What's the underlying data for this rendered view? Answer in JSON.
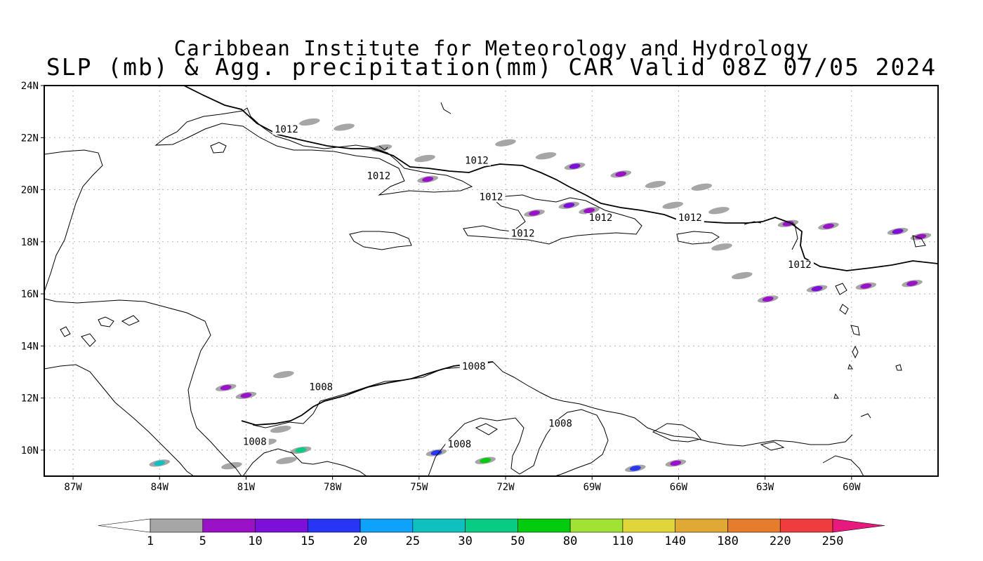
{
  "header": {
    "institute": "Caribbean Institute for Meteorology and Hydrology",
    "product": "SLP (mb) & Agg. precipitation(mm) CAR Valid 08Z 07/05 2024"
  },
  "map": {
    "lat_range": [
      9,
      24
    ],
    "lon_range": [
      -88,
      -57
    ],
    "lat_ticks": [
      {
        "label": "24N",
        "lat": 24
      },
      {
        "label": "22N",
        "lat": 22
      },
      {
        "label": "20N",
        "lat": 20
      },
      {
        "label": "18N",
        "lat": 18
      },
      {
        "label": "16N",
        "lat": 16
      },
      {
        "label": "14N",
        "lat": 14
      },
      {
        "label": "12N",
        "lat": 12
      },
      {
        "label": "10N",
        "lat": 10
      }
    ],
    "lon_ticks": [
      {
        "label": "87W",
        "lon": -87
      },
      {
        "label": "84W",
        "lon": -84
      },
      {
        "label": "81W",
        "lon": -81
      },
      {
        "label": "78W",
        "lon": -78
      },
      {
        "label": "75W",
        "lon": -75
      },
      {
        "label": "72W",
        "lon": -72
      },
      {
        "label": "69W",
        "lon": -69
      },
      {
        "label": "66W",
        "lon": -66
      },
      {
        "label": "63W",
        "lon": -63
      },
      {
        "label": "60W",
        "lon": -60
      }
    ],
    "isobar_labels": [
      {
        "text": "1012",
        "lat": 22.2,
        "lon": -79.6
      },
      {
        "text": "1012",
        "lat": 20.4,
        "lon": -76.4
      },
      {
        "text": "1012",
        "lat": 21.0,
        "lon": -73.0
      },
      {
        "text": "1012",
        "lat": 19.6,
        "lon": -72.5
      },
      {
        "text": "1012",
        "lat": 18.8,
        "lon": -68.7
      },
      {
        "text": "1012",
        "lat": 18.2,
        "lon": -71.4
      },
      {
        "text": "1012",
        "lat": 18.8,
        "lon": -65.6
      },
      {
        "text": "1012",
        "lat": 17.0,
        "lon": -61.8
      },
      {
        "text": "1008",
        "lat": 12.3,
        "lon": -78.4
      },
      {
        "text": "1008",
        "lat": 13.1,
        "lon": -73.1
      },
      {
        "text": "1008",
        "lat": 10.2,
        "lon": -80.7
      },
      {
        "text": "1008",
        "lat": 10.1,
        "lon": -73.6
      },
      {
        "text": "1008",
        "lat": 10.9,
        "lon": -70.1
      }
    ],
    "precip_cells": [
      {
        "lat": 22.6,
        "lon": -78.8,
        "mm": 2
      },
      {
        "lat": 22.4,
        "lon": -77.6,
        "mm": 2
      },
      {
        "lat": 21.6,
        "lon": -76.3,
        "mm": 2
      },
      {
        "lat": 21.2,
        "lon": -74.8,
        "mm": 2
      },
      {
        "lat": 21.8,
        "lon": -72.0,
        "mm": 2
      },
      {
        "lat": 21.3,
        "lon": -70.6,
        "mm": 3
      },
      {
        "lat": 20.9,
        "lon": -69.6,
        "mm": 12
      },
      {
        "lat": 20.6,
        "lon": -68.0,
        "mm": 8
      },
      {
        "lat": 20.2,
        "lon": -66.8,
        "mm": 2
      },
      {
        "lat": 20.1,
        "lon": -65.2,
        "mm": 2
      },
      {
        "lat": 20.4,
        "lon": -74.7,
        "mm": 8
      },
      {
        "lat": 19.4,
        "lon": -69.8,
        "mm": 12
      },
      {
        "lat": 19.1,
        "lon": -71.0,
        "mm": 8
      },
      {
        "lat": 19.2,
        "lon": -69.1,
        "mm": 8
      },
      {
        "lat": 19.4,
        "lon": -66.2,
        "mm": 3
      },
      {
        "lat": 19.2,
        "lon": -64.6,
        "mm": 3
      },
      {
        "lat": 18.7,
        "lon": -62.2,
        "mm": 8
      },
      {
        "lat": 18.6,
        "lon": -60.8,
        "mm": 7
      },
      {
        "lat": 18.4,
        "lon": -58.4,
        "mm": 12
      },
      {
        "lat": 18.2,
        "lon": -57.6,
        "mm": 8
      },
      {
        "lat": 17.8,
        "lon": -64.5,
        "mm": 2
      },
      {
        "lat": 16.4,
        "lon": -57.9,
        "mm": 8
      },
      {
        "lat": 16.3,
        "lon": -59.5,
        "mm": 6
      },
      {
        "lat": 16.2,
        "lon": -61.2,
        "mm": 10
      },
      {
        "lat": 15.8,
        "lon": -62.9,
        "mm": 8
      },
      {
        "lat": 16.7,
        "lon": -63.8,
        "mm": 3
      },
      {
        "lat": 12.4,
        "lon": -81.7,
        "mm": 7
      },
      {
        "lat": 12.1,
        "lon": -81.0,
        "mm": 6
      },
      {
        "lat": 12.9,
        "lon": -79.7,
        "mm": 2
      },
      {
        "lat": 10.8,
        "lon": -79.8,
        "mm": 3
      },
      {
        "lat": 10.3,
        "lon": -80.3,
        "mm": 3
      },
      {
        "lat": 10.0,
        "lon": -79.1,
        "mm": 30
      },
      {
        "lat": 9.5,
        "lon": -84.0,
        "mm": 25
      },
      {
        "lat": 9.6,
        "lon": -79.6,
        "mm": 3
      },
      {
        "lat": 9.9,
        "lon": -74.4,
        "mm": 18
      },
      {
        "lat": 9.6,
        "lon": -72.7,
        "mm": 50
      },
      {
        "lat": 9.3,
        "lon": -67.5,
        "mm": 18
      },
      {
        "lat": 9.5,
        "lon": -66.1,
        "mm": 9
      },
      {
        "lat": 9.4,
        "lon": -81.5,
        "mm": 3
      }
    ]
  },
  "colorbar": {
    "ticks": [
      "1",
      "5",
      "10",
      "15",
      "20",
      "25",
      "30",
      "50",
      "80",
      "110",
      "140",
      "180",
      "220",
      "250"
    ],
    "colors": [
      "#a6a6a6",
      "#9a12c8",
      "#7c10d8",
      "#2636f4",
      "#0ea2fa",
      "#0fc0c0",
      "#08cc84",
      "#02cc0e",
      "#a1e334",
      "#e0d63a",
      "#dfa934",
      "#e67d2c",
      "#f03c3c",
      "#e8197e"
    ]
  }
}
